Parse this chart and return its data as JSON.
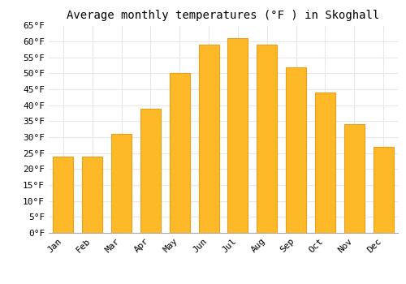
{
  "title": "Average monthly temperatures (°F ) in Skoghall",
  "months": [
    "Jan",
    "Feb",
    "Mar",
    "Apr",
    "May",
    "Jun",
    "Jul",
    "Aug",
    "Sep",
    "Oct",
    "Nov",
    "Dec"
  ],
  "values": [
    24,
    24,
    31,
    39,
    50,
    59,
    61,
    59,
    52,
    44,
    34,
    27
  ],
  "bar_color": "#FDB927",
  "bar_edge_color": "#E8A020",
  "ylim": [
    0,
    65
  ],
  "yticks": [
    0,
    5,
    10,
    15,
    20,
    25,
    30,
    35,
    40,
    45,
    50,
    55,
    60,
    65
  ],
  "ytick_labels": [
    "0°F",
    "5°F",
    "10°F",
    "15°F",
    "20°F",
    "25°F",
    "30°F",
    "35°F",
    "40°F",
    "45°F",
    "50°F",
    "55°F",
    "60°F",
    "65°F"
  ],
  "background_color": "#ffffff",
  "grid_color": "#e8e8e8",
  "title_fontsize": 10,
  "tick_fontsize": 8,
  "font_family": "monospace"
}
